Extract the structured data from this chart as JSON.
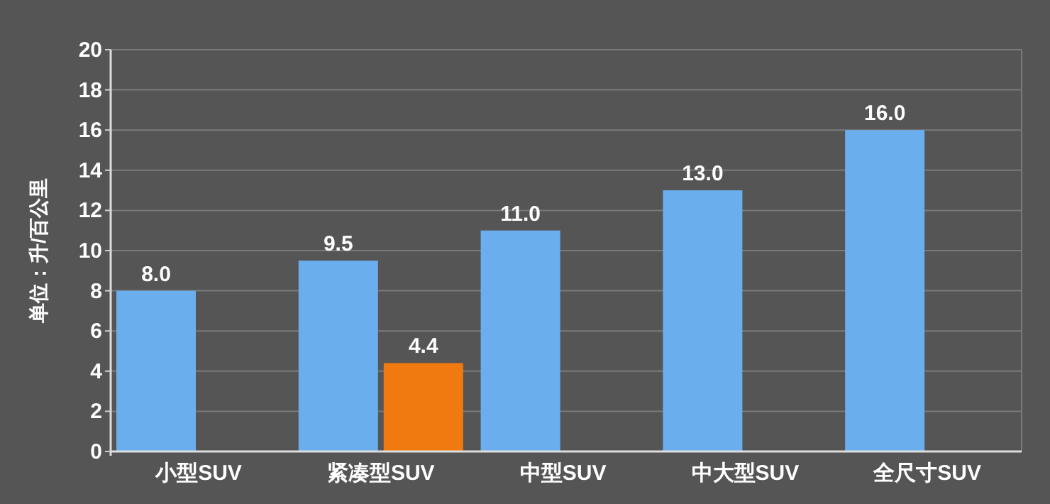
{
  "chart_data": {
    "type": "bar",
    "ylabel": "单位：升/百公里",
    "categories": [
      "小型SUV",
      "紧凑型SUV",
      "中型SUV",
      "中大型SUV",
      "全尺寸SUV"
    ],
    "series": [
      {
        "color": "#6aaeee",
        "values": [
          8.0,
          9.5,
          11.0,
          13.0,
          16.0
        ],
        "value_labels": [
          "8.0",
          "9.5",
          "11.0",
          "13.0",
          "16.0"
        ]
      },
      {
        "color": "#f07a10",
        "values": [
          null,
          4.4,
          null,
          null,
          null
        ],
        "value_labels": [
          null,
          "4.4",
          null,
          null,
          null
        ]
      }
    ],
    "ylim": [
      0,
      20
    ],
    "yticks": [
      0,
      2,
      4,
      6,
      8,
      10,
      12,
      14,
      16,
      18,
      20
    ],
    "grid": "y"
  }
}
